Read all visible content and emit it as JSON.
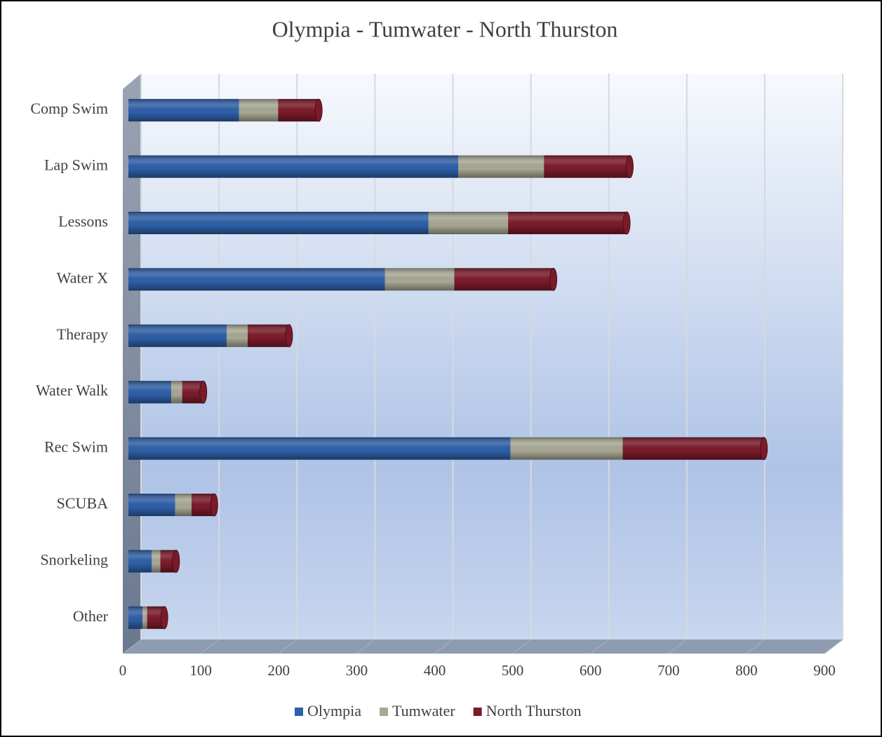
{
  "chart_data": {
    "type": "bar",
    "orientation": "horizontal",
    "stacked": true,
    "title": "Olympia - Tumwater - North Thurston",
    "categories": [
      "Comp Swim",
      "Lap Swim",
      "Lessons",
      "Water X",
      "Therapy",
      "Water Walk",
      "Rec Swim",
      "SCUBA",
      "Snorkeling",
      "Other"
    ],
    "series": [
      {
        "name": "Olympia",
        "color": "#2e5fa8",
        "values": [
          142,
          423,
          385,
          329,
          126,
          55,
          490,
          60,
          30,
          18
        ]
      },
      {
        "name": "Tumwater",
        "color": "#a8a894",
        "values": [
          50,
          110,
          102,
          89,
          27,
          14,
          144,
          21,
          11,
          6
        ]
      },
      {
        "name": "North Thurston",
        "color": "#7b1a2a",
        "values": [
          52,
          110,
          152,
          127,
          53,
          27,
          181,
          29,
          20,
          22
        ]
      }
    ],
    "xlim": [
      0,
      900
    ],
    "xticks": [
      0,
      100,
      200,
      300,
      400,
      500,
      600,
      700,
      800,
      900
    ],
    "grid": true,
    "legend": "bottom"
  }
}
